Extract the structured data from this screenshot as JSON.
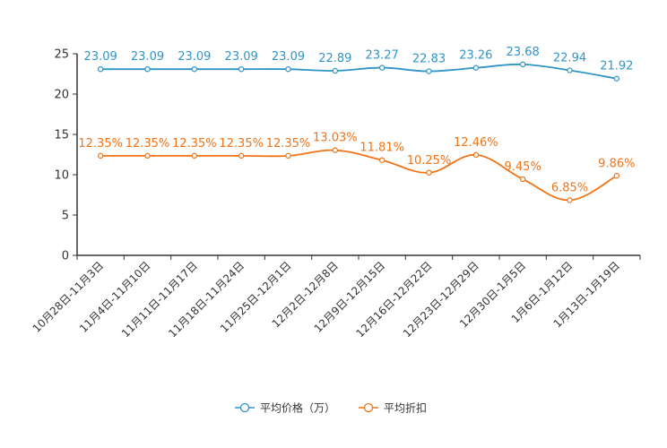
{
  "chart_data": {
    "type": "line",
    "categories": [
      "10月28日-11月3日",
      "11月4日-11月10日",
      "11月11日-11月17日",
      "11月18日-11月24日",
      "11月25日-12月1日",
      "12月2日-12月8日",
      "12月9日-12月15日",
      "12月16日-12月22日",
      "12月23日-12月29日",
      "12月30日-1月5日",
      "1月6日-1月12日",
      "1月13日-1月19日"
    ],
    "series": [
      {
        "name": "平均价格（万）",
        "color": "#2f95c7",
        "values": [
          23.09,
          23.09,
          23.09,
          23.09,
          23.09,
          22.89,
          23.27,
          22.83,
          23.26,
          23.68,
          22.94,
          21.92
        ],
        "labels": [
          "23.09",
          "23.09",
          "23.09",
          "23.09",
          "23.09",
          "22.89",
          "23.27",
          "22.83",
          "23.26",
          "23.68",
          "22.94",
          "21.92"
        ]
      },
      {
        "name": "平均折扣",
        "color": "#f07316",
        "values": [
          12.35,
          12.35,
          12.35,
          12.35,
          12.35,
          13.03,
          11.81,
          10.25,
          12.46,
          9.45,
          6.85,
          9.86
        ],
        "labels": [
          "12.35%",
          "12.35%",
          "12.35%",
          "12.35%",
          "12.35%",
          "13.03%",
          "11.81%",
          "10.25%",
          "12.46%",
          "9.45%",
          "6.85%",
          "9.86%"
        ]
      }
    ],
    "yticks": [
      "0",
      "5",
      "10",
      "15",
      "20",
      "25"
    ],
    "ylim": [
      0,
      25
    ],
    "title": "",
    "xlabel": "",
    "ylabel": "",
    "legend_position": "bottom-center",
    "grid": false
  }
}
